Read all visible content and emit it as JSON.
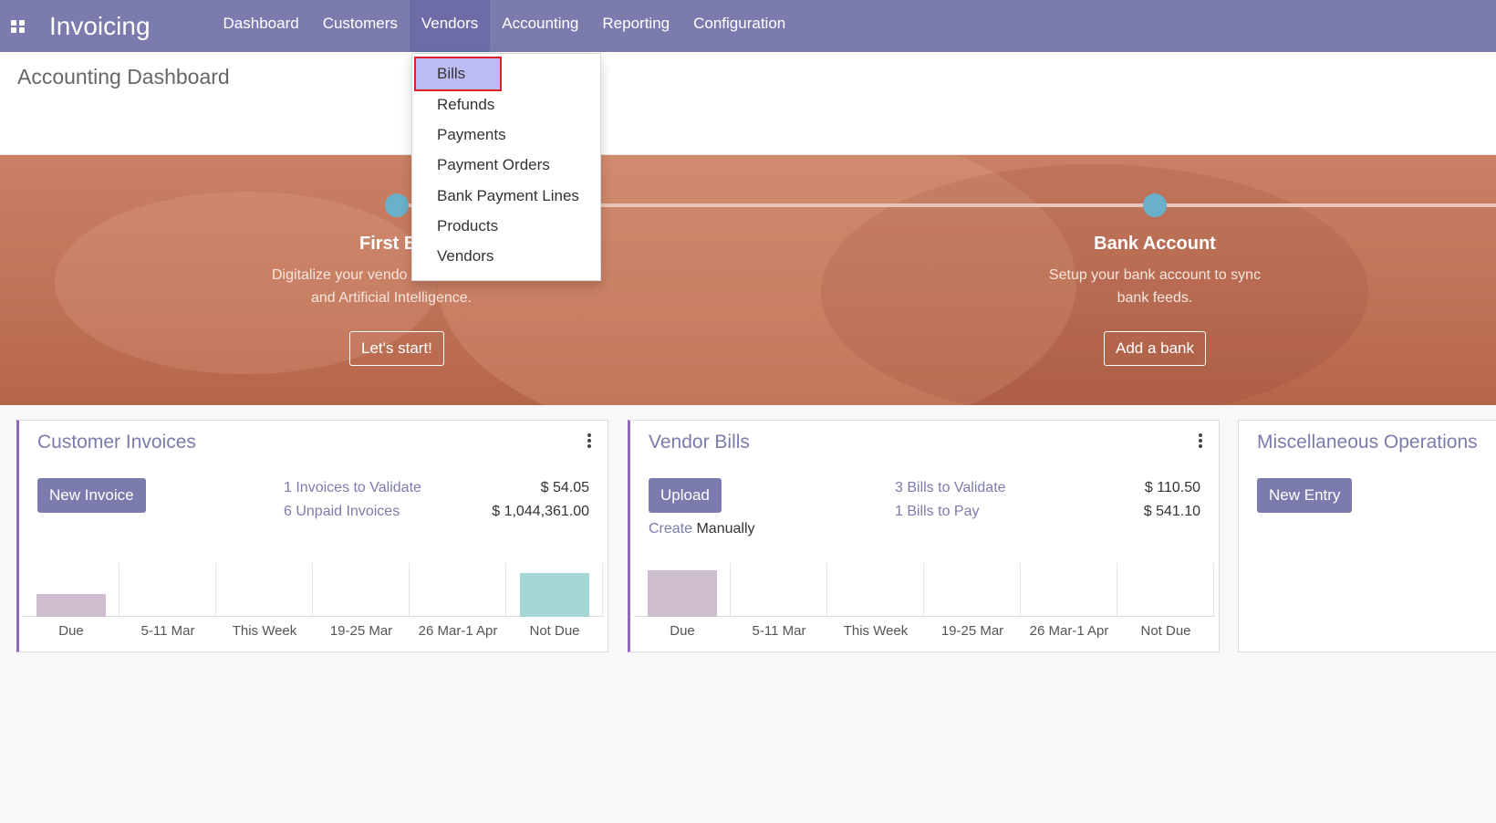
{
  "app": {
    "title": "Invoicing"
  },
  "nav": {
    "items": [
      {
        "label": "Dashboard"
      },
      {
        "label": "Customers"
      },
      {
        "label": "Vendors"
      },
      {
        "label": "Accounting"
      },
      {
        "label": "Reporting"
      },
      {
        "label": "Configuration"
      }
    ],
    "active": "Vendors"
  },
  "page": {
    "title": "Accounting Dashboard"
  },
  "dropdown": {
    "items": [
      {
        "label": "Bills"
      },
      {
        "label": "Refunds"
      },
      {
        "label": "Payments"
      },
      {
        "label": "Payment Orders"
      },
      {
        "label": "Bank Payment Lines"
      },
      {
        "label": "Products"
      },
      {
        "label": "Vendors"
      }
    ],
    "highlighted": "Bills"
  },
  "onboarding": {
    "steps": [
      {
        "title": "First B",
        "desc_line1": "Digitalize your vendo",
        "desc_line2": "and Artificial Intelligence.",
        "button": "Let's start!"
      },
      {
        "title": "Bank Account",
        "desc_line1": "Setup your bank account to sync",
        "desc_line2": "bank feeds.",
        "button": "Add a bank"
      }
    ]
  },
  "cards": {
    "customer_invoices": {
      "title": "Customer Invoices",
      "button": "New Invoice",
      "rows": [
        {
          "label": "1 Invoices to Validate",
          "amount": "$ 54.05"
        },
        {
          "label": "6 Unpaid Invoices",
          "amount": "$ 1,044,361.00"
        }
      ],
      "graph": {
        "labels": [
          "Due",
          "5-11 Mar",
          "This Week",
          "19-25 Mar",
          "26 Mar-1 Apr",
          "Not Due"
        ],
        "values": [
          0.43,
          0,
          0,
          0,
          0,
          0.82
        ],
        "colors": [
          "#cdbdcf",
          "#cdbdcf",
          "#cdbdcf",
          "#cdbdcf",
          "#cdbdcf",
          "#a3d8d7"
        ]
      }
    },
    "vendor_bills": {
      "title": "Vendor Bills",
      "button": "Upload",
      "create_link": "Create",
      "create_text": " Manually",
      "rows": [
        {
          "label": "3 Bills to Validate",
          "amount": "$ 110.50"
        },
        {
          "label": "1 Bills to Pay",
          "amount": "$ 541.10"
        }
      ],
      "graph": {
        "labels": [
          "Due",
          "5-11 Mar",
          "This Week",
          "19-25 Mar",
          "26 Mar-1 Apr",
          "Not Due"
        ],
        "values": [
          0.86,
          0,
          0,
          0,
          0,
          0
        ],
        "colors": [
          "#cdbdcf",
          "#cdbdcf",
          "#cdbdcf",
          "#cdbdcf",
          "#cdbdcf",
          "#cdbdcf"
        ]
      }
    },
    "misc": {
      "title": "Miscellaneous Operations",
      "button": "New Entry"
    }
  }
}
